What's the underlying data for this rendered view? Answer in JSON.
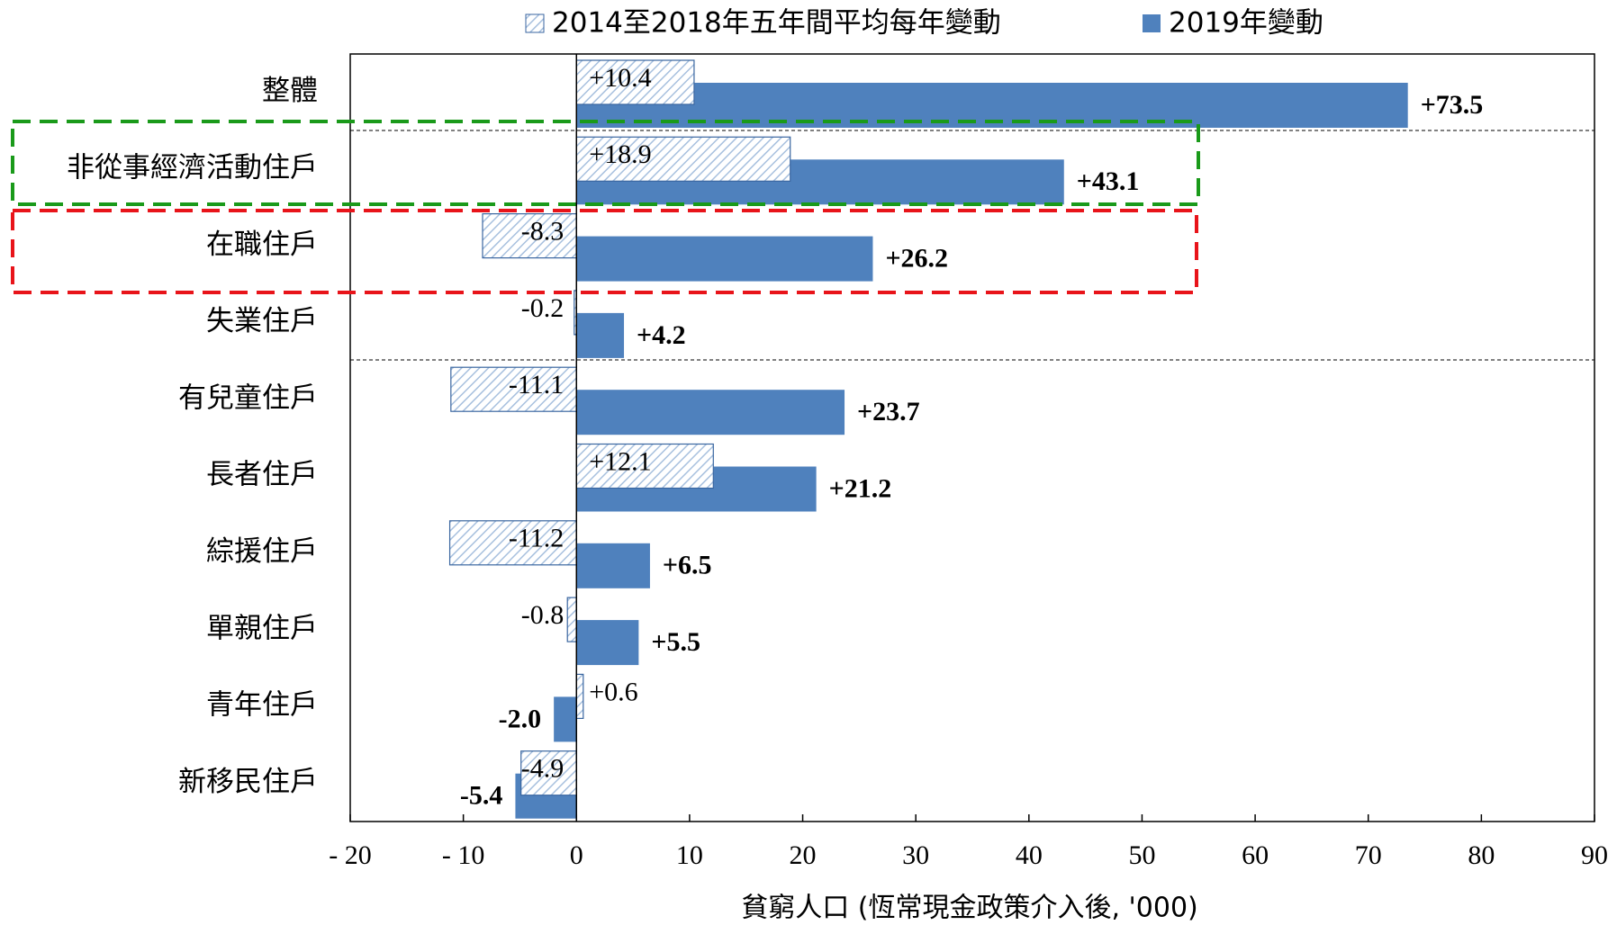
{
  "chart_data": {
    "type": "bar",
    "orientation": "horizontal",
    "x_label": "貧窮人口 (恆常現金政策介入後, '000)",
    "categories": [
      "整體",
      "非從事經濟活動住戶",
      "在職住戶",
      "失業住戶",
      "有兒童住戶",
      "長者住戶",
      "綜援住戶",
      "單親住戶",
      "青年住戶",
      "新移民住戶"
    ],
    "series": [
      {
        "name": "2014至2018年五年間平均每年變動",
        "color": "#4f81bd",
        "pattern": "hatch",
        "values": [
          10.4,
          18.9,
          -8.3,
          -0.2,
          -11.1,
          12.1,
          -11.2,
          -0.8,
          0.6,
          -4.9
        ],
        "value_labels": [
          "+10.4",
          "+18.9",
          "-8.3",
          "-0.2",
          "-11.1",
          "+12.1",
          "-11.2",
          "-0.8",
          "+0.6",
          "-4.9"
        ]
      },
      {
        "name": "2019年變動",
        "color": "#4f81bd",
        "pattern": "solid",
        "values": [
          73.5,
          43.1,
          26.2,
          4.2,
          23.7,
          21.2,
          6.5,
          5.5,
          -2.0,
          -5.4
        ],
        "value_labels": [
          "+73.5",
          "+43.1",
          "+26.2",
          "+4.2",
          "+23.7",
          "+21.2",
          "+6.5",
          "+5.5",
          "-2.0",
          "-5.4"
        ]
      }
    ],
    "xlim": [
      -20,
      90
    ],
    "xticks": [
      {
        "value": -20,
        "label": "- 20"
      },
      {
        "value": -10,
        "label": "- 10"
      },
      0,
      10,
      20,
      30,
      40,
      50,
      60,
      70,
      80,
      90
    ],
    "legend": "top"
  }
}
